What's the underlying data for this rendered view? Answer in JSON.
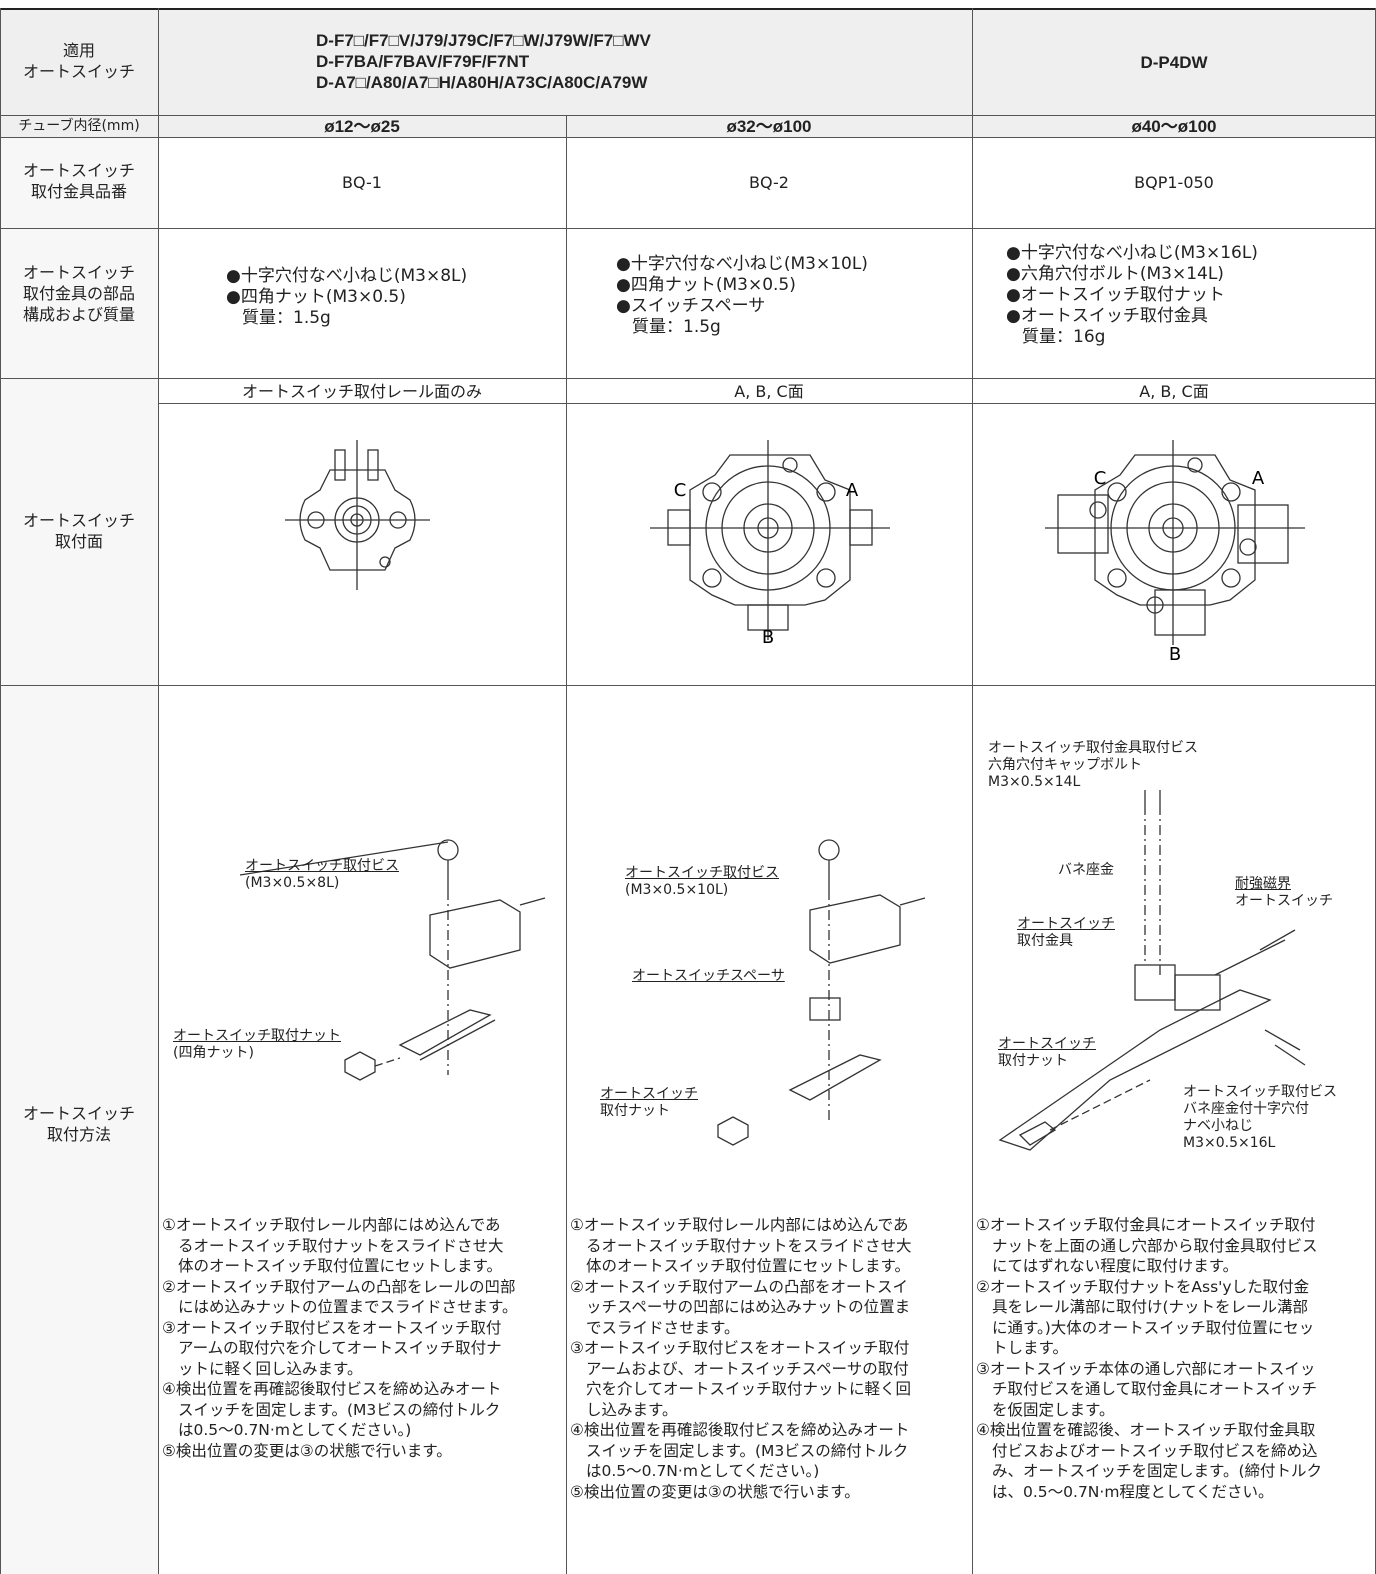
{
  "switches": {
    "label": [
      "適用",
      "オートスイッチ"
    ],
    "group1": [
      "D-F7□/F7□V/J79/J79C/F7□W/J79W/F7□WV",
      "D-F7BA/F7BAV/F79F/F7NT",
      "D-A7□/A80/A7□H/A80H/A73C/A80C/A79W"
    ],
    "group2": "D-P4DW"
  },
  "bore": {
    "label": "チューブ内径(mm)",
    "cells": [
      "ø12～ø25",
      "ø32～ø100",
      "ø40～ø100"
    ]
  },
  "bracket_part_no": {
    "label": [
      "オートスイッチ",
      "取付金具品番"
    ],
    "cells": [
      "BQ-1",
      "BQ-2",
      "BQP1-050"
    ]
  },
  "components": {
    "label": [
      "オートスイッチ",
      "取付金具の部品",
      "構成および質量"
    ],
    "cells": [
      [
        "●十字穴付なべ小ねじ(M3×8L)",
        "●四角ナット(M3×0.5)",
        "質量：1.5g"
      ],
      [
        "●十字穴付なべ小ねじ(M3×10L)",
        "●四角ナット(M3×0.5)",
        "●スイッチスペーサ",
        "質量：1.5g"
      ],
      [
        "●十字穴付なべ小ねじ(M3×16L)",
        "●六角穴付ボルト(M3×14L)",
        "●オートスイッチ取付ナット",
        "●オートスイッチ取付金具",
        "質量：16g"
      ]
    ]
  },
  "mounting_surface": {
    "label": [
      "オートスイッチ",
      "取付面"
    ],
    "cells": [
      {
        "caption": "オートスイッチ取付レール面のみ"
      },
      {
        "caption": "A, B, C面",
        "markers": [
          "C",
          "A",
          "B"
        ]
      },
      {
        "caption": "A, B, C面",
        "markers": [
          "C",
          "A",
          "B"
        ]
      }
    ]
  },
  "mounting_method": {
    "label": [
      "オートスイッチ",
      "取付方法"
    ],
    "cells": [
      {
        "callouts": [
          [
            "オートスイッチ取付ビス",
            "(M3×0.5×8L)"
          ],
          [
            "オートスイッチ取付ナット",
            "(四角ナット)"
          ]
        ],
        "steps": [
          [
            "①オートスイッチ取付レール内部にはめ込んであ",
            "るオートスイッチ取付ナットをスライドさせ大",
            "体のオートスイッチ取付位置にセットします。"
          ],
          [
            "②オートスイッチ取付アームの凸部をレールの凹部",
            "にはめ込みナットの位置までスライドさせます。"
          ],
          [
            "③オートスイッチ取付ビスをオートスイッチ取付",
            "アームの取付穴を介してオートスイッチ取付ナ",
            "ットに軽く回し込みます。"
          ],
          [
            "④検出位置を再確認後取付ビスを締め込みオート",
            "スイッチを固定します。(M3ビスの締付トルク",
            "は0.5～0.7N·mとしてください。)"
          ],
          [
            "⑤検出位置の変更は③の状態で行います。"
          ]
        ]
      },
      {
        "callouts": [
          [
            "オートスイッチ取付ビス",
            "(M3×0.5×10L)"
          ],
          [
            "オートスイッチスペーサ"
          ],
          [
            "オートスイッチ",
            "取付ナット"
          ]
        ],
        "steps": [
          [
            "①オートスイッチ取付レール内部にはめ込んであ",
            "るオートスイッチ取付ナットをスライドさせ大",
            "体のオートスイッチ取付位置にセットします。"
          ],
          [
            "②オートスイッチ取付アームの凸部をオートスイ",
            "ッチスペーサの凹部にはめ込みナットの位置ま",
            "でスライドさせます。"
          ],
          [
            "③オートスイッチ取付ビスをオートスイッチ取付",
            "アームおよび、オートスイッチスペーサの取付",
            "穴を介してオートスイッチ取付ナットに軽く回",
            "し込みます。"
          ],
          [
            "④検出位置を再確認後取付ビスを締め込みオート",
            "スイッチを固定します。(M3ビスの締付トルク",
            "は0.5～0.7N·mとしてください。)"
          ],
          [
            "⑤検出位置の変更は③の状態で行います。"
          ]
        ]
      },
      {
        "callouts": [
          [
            "オートスイッチ取付金具取付ビス",
            "六角穴付キャップボルト",
            "M3×0.5×14L"
          ],
          [
            "バネ座金"
          ],
          [
            "耐強磁界",
            "オートスイッチ"
          ],
          [
            "オートスイッチ",
            "取付金具"
          ],
          [
            "オートスイッチ",
            "取付ナット"
          ],
          [
            "オートスイッチ取付ビス",
            "バネ座金付十字穴付",
            "ナベ小ねじ",
            "M3×0.5×16L"
          ]
        ],
        "steps": [
          [
            "①オートスイッチ取付金具にオートスイッチ取付",
            "ナットを上面の通し穴部から取付金具取付ビス",
            "にてはずれない程度に取付けます。"
          ],
          [
            "②オートスイッチ取付ナットをAss'yした取付金",
            "具をレール溝部に取付け(ナットをレール溝部",
            "に通す。)大体のオートスイッチ取付位置にセッ",
            "トします。"
          ],
          [
            "③オートスイッチ本体の通し穴部にオートスイッ",
            "チ取付ビスを通して取付金具にオートスイッチ",
            "を仮固定します。"
          ],
          [
            "④検出位置を確認後、オートスイッチ取付金具取",
            "付ビスおよびオートスイッチ取付ビスを締め込",
            "み、オートスイッチを固定します。(締付トルク",
            "は、0.5～0.7N·m程度としてください。"
          ]
        ]
      }
    ]
  }
}
